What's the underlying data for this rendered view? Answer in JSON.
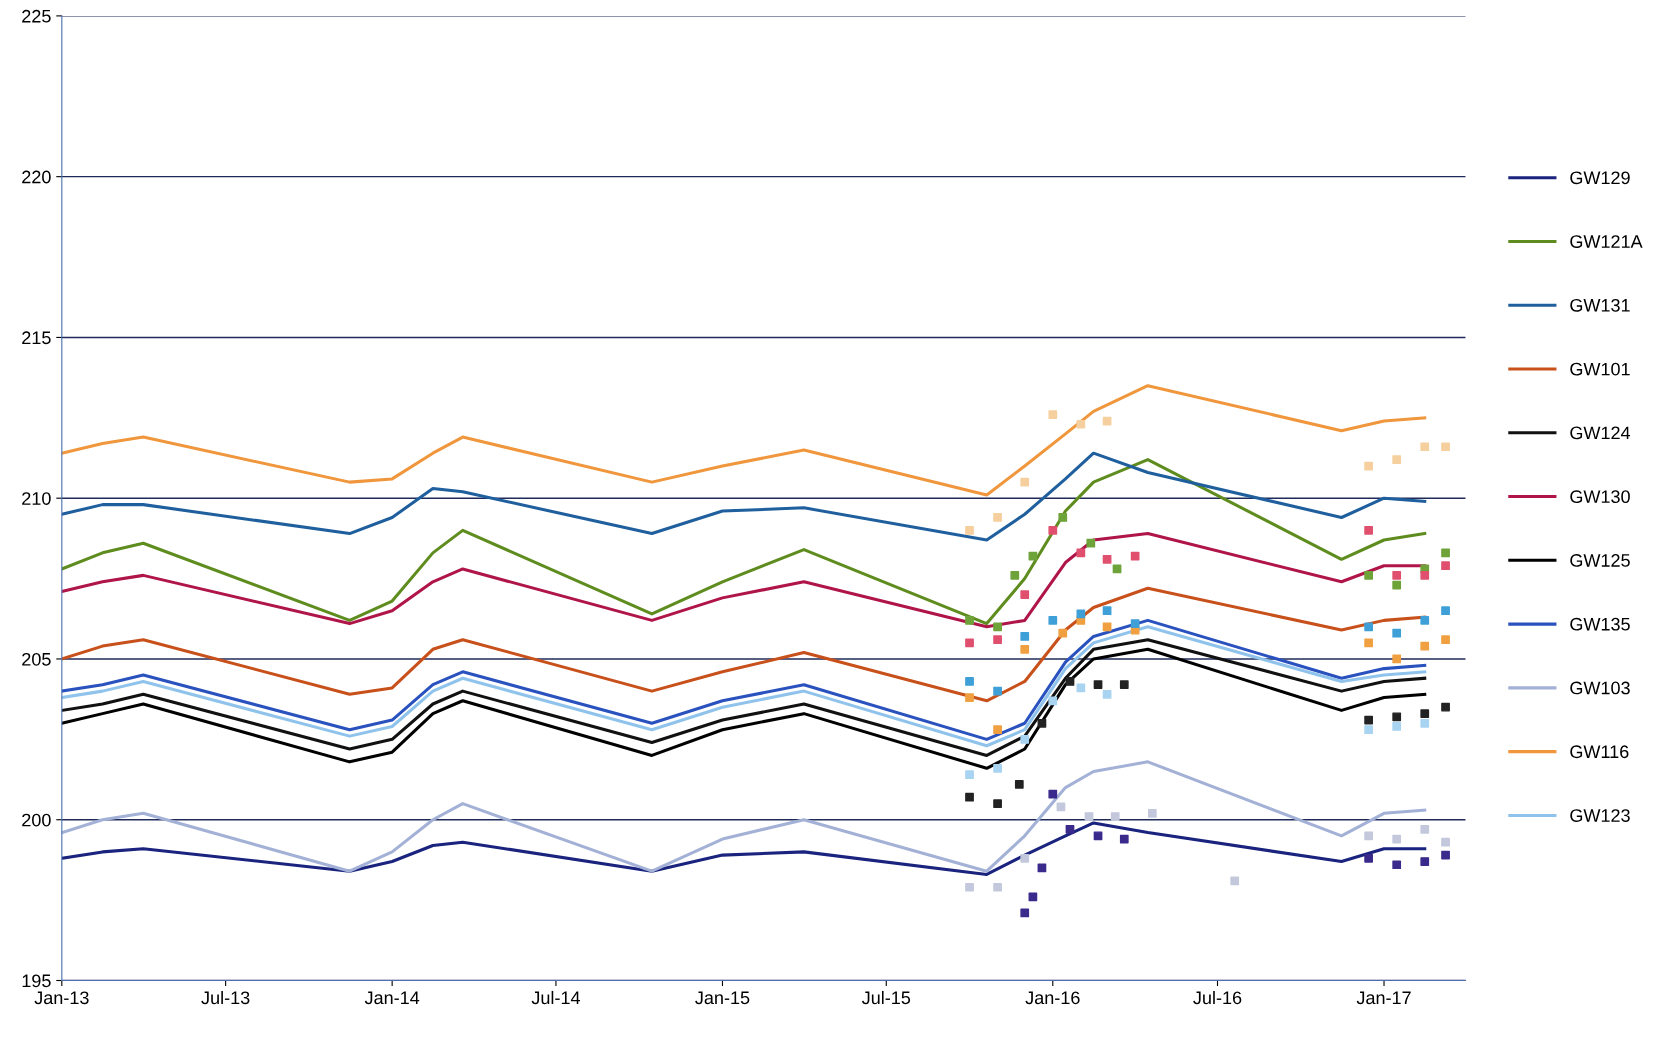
{
  "chart_data": {
    "type": "line",
    "x": [
      "2013-01-01",
      "2013-02-15",
      "2013-04-01",
      "2013-11-15",
      "2014-01-01",
      "2014-02-15",
      "2014-03-20",
      "2014-10-15",
      "2015-01-01",
      "2015-04-01",
      "2015-10-20",
      "2015-12-01",
      "2016-01-15",
      "2016-02-15",
      "2016-04-15",
      "2016-11-15",
      "2017-01-01",
      "2017-02-15"
    ],
    "xlim": [
      "2013-01-01",
      "2017-04-01"
    ],
    "xticks": [
      {
        "value": "2013-01-01",
        "label": "Jan-13"
      },
      {
        "value": "2013-07-01",
        "label": "Jul-13"
      },
      {
        "value": "2014-01-01",
        "label": "Jan-14"
      },
      {
        "value": "2014-07-01",
        "label": "Jul-14"
      },
      {
        "value": "2015-01-01",
        "label": "Jan-15"
      },
      {
        "value": "2015-07-01",
        "label": "Jul-15"
      },
      {
        "value": "2016-01-01",
        "label": "Jan-16"
      },
      {
        "value": "2016-07-01",
        "label": "Jul-16"
      },
      {
        "value": "2017-01-01",
        "label": "Jan-17"
      }
    ],
    "ylim": [
      195,
      225
    ],
    "yticks": [
      195,
      200,
      205,
      210,
      215,
      220,
      225
    ],
    "grid": "y",
    "legend": "right",
    "series": [
      {
        "name": "GW129",
        "color": "#1a237e",
        "values": [
          198.8,
          199.0,
          199.1,
          198.4,
          198.7,
          199.2,
          199.3,
          198.4,
          198.9,
          199.0,
          198.3,
          198.9,
          199.5,
          199.9,
          199.6,
          198.7,
          199.1,
          199.1
        ]
      },
      {
        "name": "GW121A",
        "color": "#5f8c1e",
        "values": [
          207.8,
          208.3,
          208.6,
          206.2,
          206.8,
          208.3,
          209.0,
          206.4,
          207.4,
          208.4,
          206.1,
          207.5,
          209.6,
          210.5,
          211.2,
          208.1,
          208.7,
          208.9
        ]
      },
      {
        "name": "GW131",
        "color": "#1f5f9e",
        "values": [
          209.5,
          209.8,
          209.8,
          208.9,
          209.4,
          210.3,
          210.2,
          208.9,
          209.6,
          209.7,
          208.7,
          209.5,
          210.6,
          211.4,
          210.8,
          209.4,
          210.0,
          209.9
        ]
      },
      {
        "name": "GW101",
        "color": "#c8501a",
        "values": [
          205.0,
          205.4,
          205.6,
          203.9,
          204.1,
          205.3,
          205.6,
          204.0,
          204.6,
          205.2,
          203.7,
          204.3,
          205.9,
          206.6,
          207.2,
          205.9,
          206.2,
          206.3
        ]
      },
      {
        "name": "GW124",
        "color": "#111111",
        "values": [
          203.4,
          203.6,
          203.9,
          202.2,
          202.5,
          203.6,
          204.0,
          202.4,
          203.1,
          203.6,
          202.0,
          202.6,
          204.4,
          205.3,
          205.6,
          204.0,
          204.3,
          204.4
        ]
      },
      {
        "name": "GW130",
        "color": "#b0154a",
        "values": [
          207.1,
          207.4,
          207.6,
          206.1,
          206.5,
          207.4,
          207.8,
          206.2,
          206.9,
          207.4,
          206.0,
          206.2,
          208.0,
          208.7,
          208.9,
          207.4,
          207.9,
          207.9
        ]
      },
      {
        "name": "GW125",
        "color": "#000000",
        "values": [
          203.0,
          203.3,
          203.6,
          201.8,
          202.1,
          203.3,
          203.7,
          202.0,
          202.8,
          203.3,
          201.6,
          202.2,
          204.2,
          205.0,
          205.3,
          203.4,
          203.8,
          203.9
        ]
      },
      {
        "name": "GW135",
        "color": "#2a52be",
        "values": [
          204.0,
          204.2,
          204.5,
          202.8,
          203.1,
          204.2,
          204.6,
          203.0,
          203.7,
          204.2,
          202.5,
          203.0,
          204.9,
          205.7,
          206.2,
          204.4,
          204.7,
          204.8
        ]
      },
      {
        "name": "GW103",
        "color": "#a3b1d6",
        "values": [
          199.6,
          200.0,
          200.2,
          198.4,
          199.0,
          200.0,
          200.5,
          198.4,
          199.4,
          200.0,
          198.4,
          199.5,
          201.0,
          201.5,
          201.8,
          199.5,
          200.2,
          200.3
        ]
      },
      {
        "name": "GW116",
        "color": "#f0963c",
        "values": [
          211.4,
          211.7,
          211.9,
          210.5,
          210.6,
          211.4,
          211.9,
          210.5,
          211.0,
          211.5,
          210.1,
          211.0,
          212.0,
          212.7,
          213.5,
          212.1,
          212.4,
          212.5
        ]
      },
      {
        "name": "GW123",
        "color": "#8fc3ec",
        "values": [
          203.8,
          204.0,
          204.3,
          202.6,
          202.9,
          204.0,
          204.4,
          202.8,
          203.5,
          204.0,
          202.3,
          202.8,
          204.7,
          205.5,
          206.0,
          204.3,
          204.5,
          204.6
        ]
      },
      {
        "type": "scatter",
        "marker": "square",
        "color": "#f6cf9e",
        "x": [
          "2015-10-01",
          "2015-11-01",
          "2015-12-01",
          "2016-01-01",
          "2016-02-01",
          "2016-03-01",
          "2016-12-15",
          "2017-01-15",
          "2017-02-15",
          "2017-03-10"
        ],
        "values": [
          209.0,
          209.4,
          210.5,
          212.6,
          212.3,
          212.4,
          211.0,
          211.2,
          211.6,
          211.6
        ]
      },
      {
        "type": "scatter",
        "marker": "square",
        "color": "#6ea33a",
        "x": [
          "2015-10-01",
          "2015-11-01",
          "2015-11-20",
          "2015-12-10",
          "2016-01-12",
          "2016-02-12",
          "2016-03-12",
          "2016-12-15",
          "2017-01-15",
          "2017-02-15",
          "2017-03-10"
        ],
        "values": [
          206.2,
          206.0,
          207.6,
          208.2,
          209.4,
          208.6,
          207.8,
          207.6,
          207.3,
          207.8,
          208.3
        ]
      },
      {
        "type": "scatter",
        "marker": "square",
        "color": "#e0506e",
        "x": [
          "2015-10-01",
          "2015-11-01",
          "2015-12-01",
          "2016-01-01",
          "2016-02-01",
          "2016-03-01",
          "2016-04-01",
          "2016-12-15",
          "2017-01-15",
          "2017-02-15",
          "2017-03-10"
        ],
        "values": [
          205.5,
          205.6,
          207.0,
          209.0,
          208.3,
          208.1,
          208.2,
          209.0,
          207.6,
          207.6,
          207.9
        ]
      },
      {
        "type": "scatter",
        "marker": "square",
        "color": "#f0a040",
        "x": [
          "2015-10-01",
          "2015-11-01",
          "2015-12-01",
          "2016-01-12",
          "2016-02-01",
          "2016-03-01",
          "2016-04-01",
          "2016-12-15",
          "2017-01-15",
          "2017-02-15",
          "2017-03-10"
        ],
        "values": [
          203.8,
          202.8,
          205.3,
          205.8,
          206.2,
          206.0,
          205.9,
          205.5,
          205.0,
          205.4,
          205.6
        ]
      },
      {
        "type": "scatter",
        "marker": "square",
        "color": "#3fa0d8",
        "x": [
          "2015-10-01",
          "2015-11-01",
          "2015-12-01",
          "2016-01-01",
          "2016-02-01",
          "2016-03-01",
          "2016-04-01",
          "2016-12-15",
          "2017-01-15",
          "2017-02-15",
          "2017-03-10"
        ],
        "values": [
          204.3,
          204.0,
          205.7,
          206.2,
          206.4,
          206.5,
          206.1,
          206.0,
          205.8,
          206.2,
          206.5
        ]
      },
      {
        "type": "scatter",
        "marker": "square",
        "color": "#222222",
        "x": [
          "2015-10-01",
          "2015-11-01",
          "2015-11-25",
          "2015-12-20",
          "2016-01-20",
          "2016-02-20",
          "2016-03-20",
          "2016-12-15",
          "2017-01-15",
          "2017-02-15",
          "2017-03-10"
        ],
        "values": [
          200.7,
          200.5,
          201.1,
          203.0,
          204.3,
          204.2,
          204.2,
          203.1,
          203.2,
          203.3,
          203.5
        ]
      },
      {
        "type": "scatter",
        "marker": "square",
        "color": "#a8d4f2",
        "x": [
          "2015-10-01",
          "2015-11-01",
          "2015-12-01",
          "2016-01-01",
          "2016-02-01",
          "2016-03-01",
          "2016-12-15",
          "2017-01-15",
          "2017-02-15"
        ],
        "values": [
          201.4,
          201.6,
          202.5,
          203.7,
          204.1,
          203.9,
          202.8,
          202.9,
          203.0
        ]
      },
      {
        "type": "scatter",
        "marker": "square",
        "color": "#3a2a8c",
        "x": [
          "2015-12-01",
          "2015-12-10",
          "2015-12-20",
          "2016-01-01",
          "2016-01-20",
          "2016-02-20",
          "2016-03-20",
          "2016-12-15",
          "2017-01-15",
          "2017-02-15",
          "2017-03-10"
        ],
        "values": [
          197.1,
          197.6,
          198.5,
          200.8,
          199.7,
          199.5,
          199.4,
          198.8,
          198.6,
          198.7,
          198.9
        ]
      },
      {
        "type": "scatter",
        "marker": "square",
        "color": "#c4c8dc",
        "x": [
          "2015-10-01",
          "2015-11-01",
          "2015-12-01",
          "2016-01-10",
          "2016-02-10",
          "2016-03-10",
          "2016-04-20",
          "2016-07-20",
          "2016-12-15",
          "2017-01-15",
          "2017-02-15",
          "2017-03-10"
        ],
        "values": [
          197.9,
          197.9,
          198.8,
          200.4,
          200.1,
          200.1,
          200.2,
          198.1,
          199.5,
          199.4,
          199.7,
          199.3
        ]
      }
    ]
  }
}
